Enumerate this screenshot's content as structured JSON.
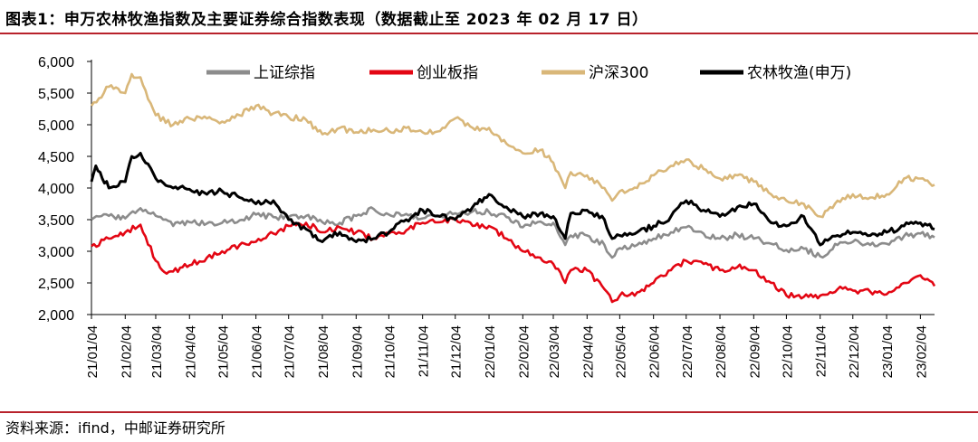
{
  "header": {
    "title": "图表1：申万农林牧渔指数及主要证券综合指数表现（数据截止至 2023 年 02 月 17 日）"
  },
  "footer": {
    "source": "资料来源：ifind，中邮证券研究所"
  },
  "chart_data": {
    "type": "line",
    "title": "",
    "xlabel": "",
    "ylabel": "",
    "ylim": [
      2000,
      6000
    ],
    "yticks": [
      2000,
      2500,
      3000,
      3500,
      4000,
      4500,
      5000,
      5500,
      6000
    ],
    "ytick_labels": [
      "2,000",
      "2,500",
      "3,000",
      "3,500",
      "4,000",
      "4,500",
      "5,000",
      "5,500",
      "6,000"
    ],
    "x_labels": [
      "21/01/04",
      "21/02/04",
      "21/03/04",
      "21/04/04",
      "21/05/04",
      "21/06/04",
      "21/07/04",
      "21/08/04",
      "21/09/04",
      "21/10/04",
      "21/11/04",
      "21/12/04",
      "22/01/04",
      "22/02/04",
      "22/03/04",
      "22/04/04",
      "22/05/04",
      "22/06/04",
      "22/07/04",
      "22/08/04",
      "22/09/04",
      "22/10/04",
      "22/11/04",
      "22/12/04",
      "23/01/04",
      "23/02/04"
    ],
    "x_range": [
      "21/01/04",
      "23/02/17"
    ],
    "grid": false,
    "legend_position": "top",
    "series": [
      {
        "name": "上证综指",
        "color": "#8c8c8c",
        "points": [
          [
            "21/01/04",
            3500
          ],
          [
            "21/01/20",
            3560
          ],
          [
            "21/02/04",
            3520
          ],
          [
            "21/02/18",
            3680
          ],
          [
            "21/03/04",
            3560
          ],
          [
            "21/03/20",
            3400
          ],
          [
            "21/04/04",
            3460
          ],
          [
            "21/04/20",
            3440
          ],
          [
            "21/05/04",
            3450
          ],
          [
            "21/05/20",
            3490
          ],
          [
            "21/06/04",
            3580
          ],
          [
            "21/06/20",
            3540
          ],
          [
            "21/07/04",
            3540
          ],
          [
            "21/07/20",
            3560
          ],
          [
            "21/08/04",
            3460
          ],
          [
            "21/08/20",
            3450
          ],
          [
            "21/09/04",
            3560
          ],
          [
            "21/09/20",
            3670
          ],
          [
            "21/10/04",
            3580
          ],
          [
            "21/10/20",
            3590
          ],
          [
            "21/11/04",
            3520
          ],
          [
            "21/11/20",
            3560
          ],
          [
            "21/12/04",
            3600
          ],
          [
            "21/12/20",
            3630
          ],
          [
            "22/01/04",
            3620
          ],
          [
            "22/01/20",
            3540
          ],
          [
            "22/02/04",
            3380
          ],
          [
            "22/02/20",
            3470
          ],
          [
            "22/03/04",
            3450
          ],
          [
            "22/03/15",
            3100
          ],
          [
            "22/03/20",
            3250
          ],
          [
            "22/04/04",
            3250
          ],
          [
            "22/04/20",
            3100
          ],
          [
            "22/04/27",
            2900
          ],
          [
            "22/05/04",
            3050
          ],
          [
            "22/05/20",
            3100
          ],
          [
            "22/06/04",
            3200
          ],
          [
            "22/06/20",
            3300
          ],
          [
            "22/07/04",
            3380
          ],
          [
            "22/07/20",
            3280
          ],
          [
            "22/08/04",
            3200
          ],
          [
            "22/08/20",
            3260
          ],
          [
            "22/09/04",
            3200
          ],
          [
            "22/09/20",
            3120
          ],
          [
            "22/10/04",
            3020
          ],
          [
            "22/10/20",
            3040
          ],
          [
            "22/11/04",
            2920
          ],
          [
            "22/11/20",
            3100
          ],
          [
            "22/12/04",
            3150
          ],
          [
            "22/12/20",
            3100
          ],
          [
            "23/01/04",
            3120
          ],
          [
            "23/01/20",
            3240
          ],
          [
            "23/02/04",
            3280
          ],
          [
            "23/02/17",
            3220
          ]
        ]
      },
      {
        "name": "创业板指",
        "color": "#e30613",
        "points": [
          [
            "21/01/04",
            3080
          ],
          [
            "21/01/20",
            3200
          ],
          [
            "21/02/04",
            3300
          ],
          [
            "21/02/18",
            3420
          ],
          [
            "21/03/04",
            2850
          ],
          [
            "21/03/10",
            2700
          ],
          [
            "21/03/20",
            2680
          ],
          [
            "21/04/04",
            2780
          ],
          [
            "21/04/20",
            2900
          ],
          [
            "21/05/04",
            3000
          ],
          [
            "21/05/20",
            3100
          ],
          [
            "21/06/04",
            3150
          ],
          [
            "21/06/20",
            3280
          ],
          [
            "21/07/04",
            3400
          ],
          [
            "21/07/20",
            3450
          ],
          [
            "21/08/04",
            3300
          ],
          [
            "21/08/20",
            3380
          ],
          [
            "21/09/04",
            3300
          ],
          [
            "21/09/20",
            3200
          ],
          [
            "21/10/04",
            3280
          ],
          [
            "21/10/20",
            3330
          ],
          [
            "21/11/04",
            3450
          ],
          [
            "21/11/20",
            3460
          ],
          [
            "21/12/04",
            3520
          ],
          [
            "21/12/20",
            3400
          ],
          [
            "22/01/04",
            3400
          ],
          [
            "22/01/20",
            3200
          ],
          [
            "22/02/04",
            3000
          ],
          [
            "22/02/20",
            2900
          ],
          [
            "22/03/04",
            2800
          ],
          [
            "22/03/15",
            2500
          ],
          [
            "22/03/20",
            2700
          ],
          [
            "22/04/04",
            2700
          ],
          [
            "22/04/20",
            2400
          ],
          [
            "22/04/27",
            2200
          ],
          [
            "22/05/04",
            2300
          ],
          [
            "22/05/20",
            2350
          ],
          [
            "22/06/04",
            2500
          ],
          [
            "22/06/20",
            2700
          ],
          [
            "22/07/04",
            2850
          ],
          [
            "22/07/20",
            2800
          ],
          [
            "22/08/04",
            2700
          ],
          [
            "22/08/20",
            2750
          ],
          [
            "22/09/04",
            2700
          ],
          [
            "22/09/20",
            2500
          ],
          [
            "22/10/04",
            2300
          ],
          [
            "22/10/20",
            2280
          ],
          [
            "22/11/04",
            2300
          ],
          [
            "22/11/20",
            2400
          ],
          [
            "22/12/04",
            2380
          ],
          [
            "22/12/20",
            2360
          ],
          [
            "23/01/04",
            2320
          ],
          [
            "23/01/20",
            2500
          ],
          [
            "23/02/04",
            2620
          ],
          [
            "23/02/17",
            2450
          ]
        ]
      },
      {
        "name": "沪深300",
        "color": "#d9b779",
        "points": [
          [
            "21/01/04",
            5300
          ],
          [
            "21/01/20",
            5600
          ],
          [
            "21/02/04",
            5500
          ],
          [
            "21/02/10",
            5800
          ],
          [
            "21/02/18",
            5750
          ],
          [
            "21/03/04",
            5150
          ],
          [
            "21/03/20",
            5000
          ],
          [
            "21/04/04",
            5100
          ],
          [
            "21/04/20",
            5100
          ],
          [
            "21/05/04",
            5050
          ],
          [
            "21/05/20",
            5150
          ],
          [
            "21/06/04",
            5300
          ],
          [
            "21/06/20",
            5180
          ],
          [
            "21/07/04",
            5120
          ],
          [
            "21/07/20",
            5080
          ],
          [
            "21/08/04",
            4850
          ],
          [
            "21/08/20",
            4950
          ],
          [
            "21/09/04",
            4880
          ],
          [
            "21/09/20",
            4920
          ],
          [
            "21/10/04",
            4900
          ],
          [
            "21/10/20",
            4950
          ],
          [
            "21/11/04",
            4880
          ],
          [
            "21/11/20",
            4900
          ],
          [
            "21/12/04",
            5100
          ],
          [
            "21/12/20",
            4950
          ],
          [
            "22/01/04",
            4950
          ],
          [
            "22/01/20",
            4700
          ],
          [
            "22/02/04",
            4550
          ],
          [
            "22/02/20",
            4600
          ],
          [
            "22/03/04",
            4400
          ],
          [
            "22/03/15",
            4000
          ],
          [
            "22/03/20",
            4250
          ],
          [
            "22/04/04",
            4200
          ],
          [
            "22/04/20",
            4000
          ],
          [
            "22/04/27",
            3800
          ],
          [
            "22/05/04",
            3950
          ],
          [
            "22/05/20",
            4000
          ],
          [
            "22/06/04",
            4200
          ],
          [
            "22/06/20",
            4350
          ],
          [
            "22/07/04",
            4450
          ],
          [
            "22/07/20",
            4300
          ],
          [
            "22/08/04",
            4150
          ],
          [
            "22/08/20",
            4200
          ],
          [
            "22/09/04",
            4100
          ],
          [
            "22/09/20",
            3900
          ],
          [
            "22/10/04",
            3800
          ],
          [
            "22/10/20",
            3750
          ],
          [
            "22/11/04",
            3550
          ],
          [
            "22/11/20",
            3800
          ],
          [
            "22/12/04",
            3900
          ],
          [
            "22/12/20",
            3850
          ],
          [
            "23/01/04",
            3900
          ],
          [
            "23/01/20",
            4150
          ],
          [
            "23/02/04",
            4150
          ],
          [
            "23/02/17",
            4050
          ]
        ]
      },
      {
        "name": "农林牧渔(申万)",
        "color": "#000000",
        "points": [
          [
            "21/01/04",
            4100
          ],
          [
            "21/01/08",
            4350
          ],
          [
            "21/01/20",
            4000
          ],
          [
            "21/02/04",
            4100
          ],
          [
            "21/02/10",
            4500
          ],
          [
            "21/02/18",
            4550
          ],
          [
            "21/03/04",
            4150
          ],
          [
            "21/03/20",
            4000
          ],
          [
            "21/04/04",
            3980
          ],
          [
            "21/04/20",
            3900
          ],
          [
            "21/05/04",
            3950
          ],
          [
            "21/05/20",
            3850
          ],
          [
            "21/06/04",
            3750
          ],
          [
            "21/06/20",
            3800
          ],
          [
            "21/07/04",
            3500
          ],
          [
            "21/07/20",
            3350
          ],
          [
            "21/08/04",
            3150
          ],
          [
            "21/08/20",
            3300
          ],
          [
            "21/09/04",
            3150
          ],
          [
            "21/09/20",
            3200
          ],
          [
            "21/10/04",
            3300
          ],
          [
            "21/10/20",
            3500
          ],
          [
            "21/11/04",
            3650
          ],
          [
            "21/11/20",
            3550
          ],
          [
            "21/12/04",
            3500
          ],
          [
            "21/12/20",
            3700
          ],
          [
            "22/01/04",
            3900
          ],
          [
            "22/01/20",
            3700
          ],
          [
            "22/02/04",
            3550
          ],
          [
            "22/02/20",
            3600
          ],
          [
            "22/03/04",
            3550
          ],
          [
            "22/03/15",
            3200
          ],
          [
            "22/03/20",
            3600
          ],
          [
            "22/04/04",
            3650
          ],
          [
            "22/04/20",
            3500
          ],
          [
            "22/04/27",
            3200
          ],
          [
            "22/05/04",
            3250
          ],
          [
            "22/05/20",
            3300
          ],
          [
            "22/06/04",
            3400
          ],
          [
            "22/06/20",
            3550
          ],
          [
            "22/07/04",
            3800
          ],
          [
            "22/07/20",
            3650
          ],
          [
            "22/08/04",
            3550
          ],
          [
            "22/08/20",
            3700
          ],
          [
            "22/09/04",
            3750
          ],
          [
            "22/09/20",
            3450
          ],
          [
            "22/10/04",
            3400
          ],
          [
            "22/10/20",
            3550
          ],
          [
            "22/11/04",
            3100
          ],
          [
            "22/11/20",
            3250
          ],
          [
            "22/12/04",
            3300
          ],
          [
            "22/12/20",
            3250
          ],
          [
            "23/01/04",
            3300
          ],
          [
            "23/01/20",
            3400
          ],
          [
            "23/02/04",
            3450
          ],
          [
            "23/02/17",
            3350
          ]
        ]
      }
    ]
  }
}
